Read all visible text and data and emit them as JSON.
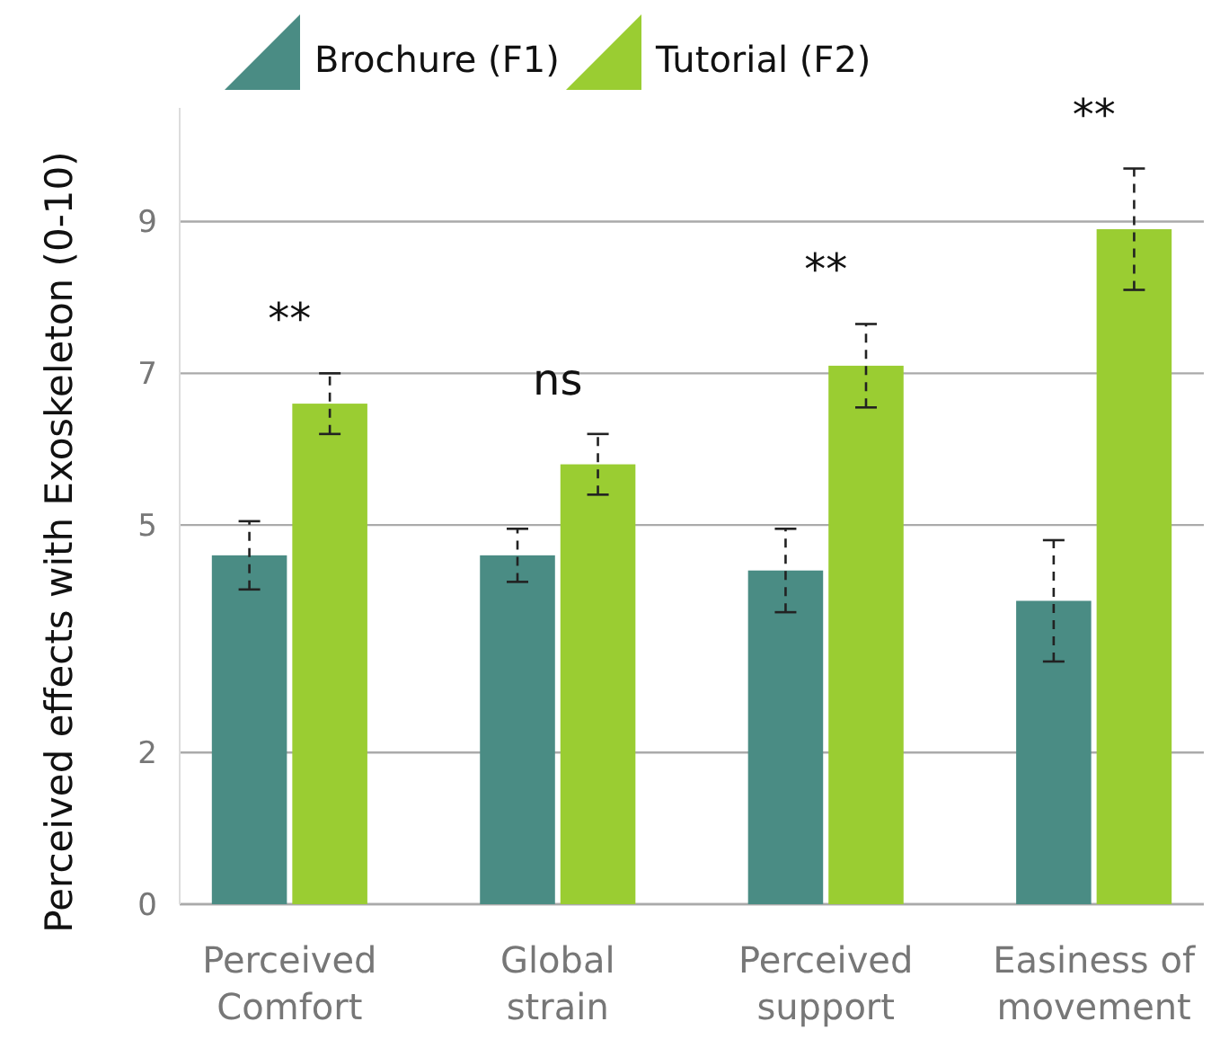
{
  "chart_data": {
    "type": "bar",
    "ylabel": "Perceived effects with Exoskeleton (0-10)",
    "categories": [
      "Perceived\nComfort",
      "Global\nstrain",
      "Perceived\nsupport",
      "Easiness of\nmovement"
    ],
    "series": [
      {
        "name": "Brochure (F1)",
        "color": "#4a8c84",
        "values": [
          4.6,
          4.6,
          4.4,
          4.0
        ],
        "errors": [
          0.45,
          0.35,
          0.55,
          0.8
        ]
      },
      {
        "name": "Tutorial (F2)",
        "color": "#9acd32",
        "values": [
          6.6,
          5.8,
          7.1,
          8.9
        ],
        "errors": [
          0.4,
          0.4,
          0.55,
          0.8
        ]
      }
    ],
    "ylim": [
      0,
      10.5
    ],
    "yticks": [
      0,
      2,
      5,
      7,
      9
    ],
    "grid": "y",
    "legend": "top",
    "annotations": [
      "**",
      "ns",
      "**",
      "**"
    ]
  }
}
